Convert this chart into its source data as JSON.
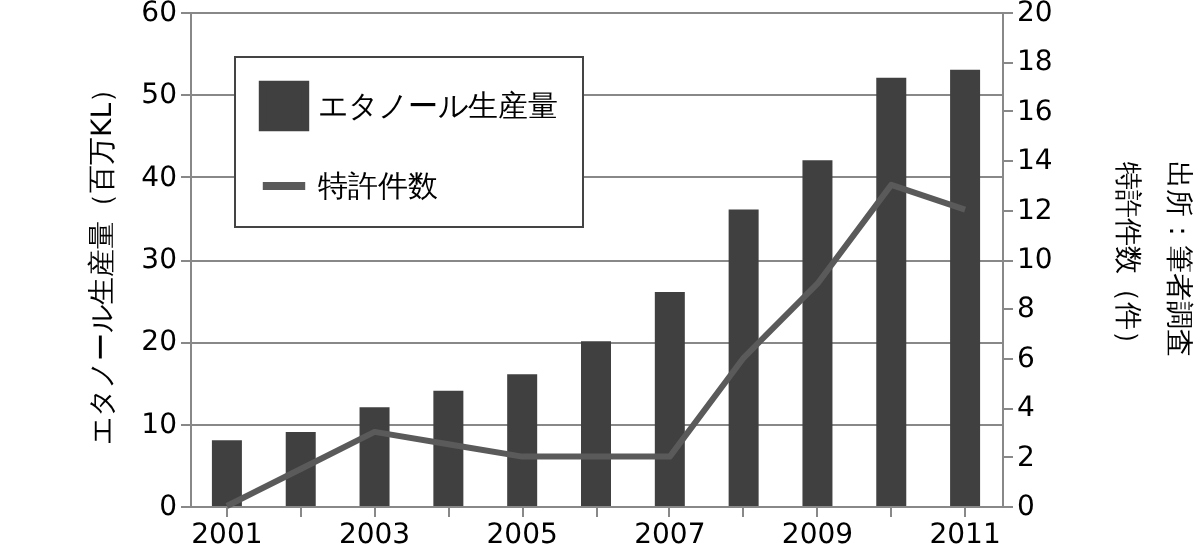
{
  "chart_data": {
    "type": "bar",
    "categories": [
      "2001",
      null,
      "2003",
      null,
      "2005",
      null,
      "2007",
      null,
      "2009",
      null,
      "2011"
    ],
    "series": [
      {
        "name": "エタノール生産量",
        "color": "#404040",
        "values": [
          8,
          9,
          12,
          14,
          16,
          20,
          26,
          36,
          42,
          52,
          53
        ]
      },
      {
        "name": "特許件数",
        "type": "line",
        "axis": "y2",
        "color": "#5a5a5a",
        "values": [
          0,
          1.5,
          3,
          2.5,
          2,
          2,
          2,
          6,
          9,
          13,
          12
        ]
      }
    ],
    "ylabel": "エタノール生産量（百万KL）",
    "y2label": "特許件数（件）",
    "annotations": [
      "出所：筆者調査"
    ],
    "ylim": [
      0,
      60
    ],
    "yticks": [
      0,
      10,
      20,
      30,
      40,
      50,
      60
    ],
    "y2lim": [
      0,
      20
    ],
    "y2ticks": [
      0,
      2,
      4,
      6,
      8,
      10,
      12,
      14,
      16,
      18,
      20
    ],
    "grid": "y",
    "legend": "top left",
    "marker": "none",
    "line_style": "solid"
  }
}
